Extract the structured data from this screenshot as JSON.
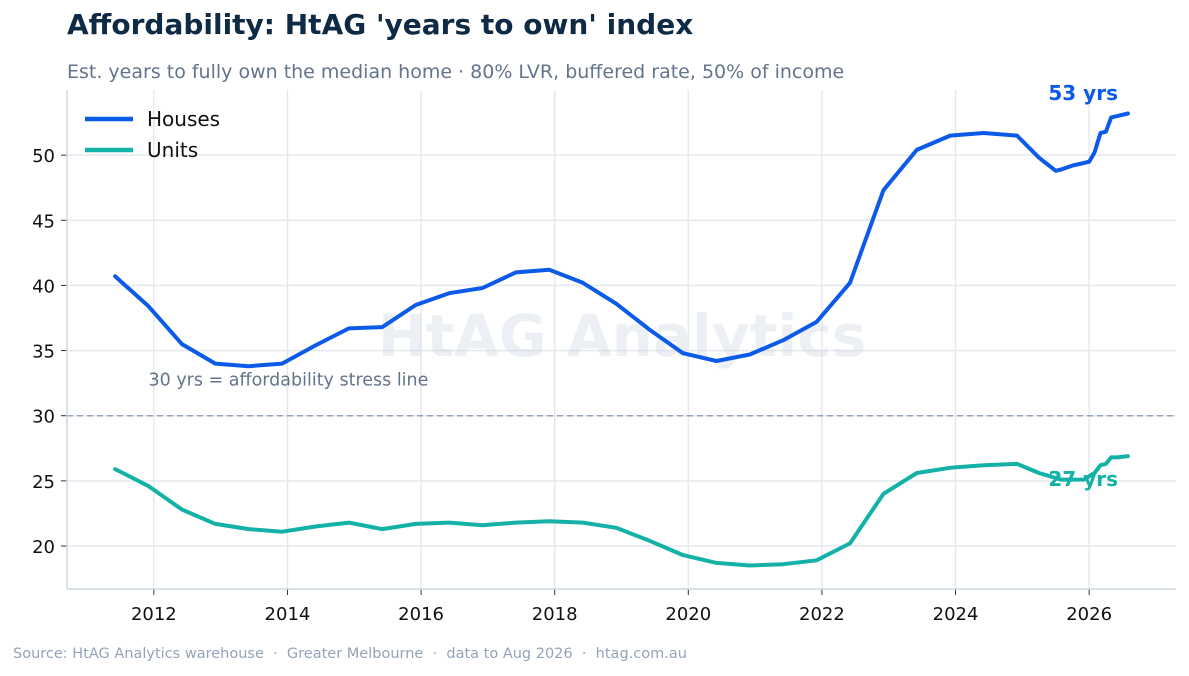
{
  "header": {
    "title": "Affordability: HtAG 'years to own' index",
    "subtitle": "Est. years to fully own the median home · 80% LVR, buffered rate, 50% of income"
  },
  "footer": {
    "source": "Source: HtAG Analytics warehouse  ·  Greater Melbourne  ·  data to Aug 2026  ·  htag.com.au"
  },
  "watermark": "HtAG Analytics",
  "colors": {
    "houses": "#0b5be8",
    "units": "#14b1a6",
    "grid": "#e5e9ee",
    "axis": "#cbd5e1",
    "stress_line": "#94a3b8"
  },
  "chart_data": {
    "type": "line",
    "xlim": [
      2010.7,
      2027.3
    ],
    "ylim": [
      16.7,
      55
    ],
    "x_ticks": [
      2012,
      2014,
      2016,
      2018,
      2020,
      2022,
      2024,
      2026
    ],
    "y_ticks": [
      20,
      25,
      30,
      35,
      40,
      45,
      50
    ],
    "grid": true,
    "legend_position": "top-left",
    "reference_line": {
      "y": 30,
      "label": "30 yrs = affordability stress line"
    },
    "series": [
      {
        "name": "Houses",
        "color": "#0b5be8",
        "end_label": "53 yrs",
        "x": [
          2011.42,
          2011.92,
          2012.42,
          2012.92,
          2013.42,
          2013.92,
          2014.42,
          2014.92,
          2015.42,
          2015.92,
          2016.42,
          2016.92,
          2017.42,
          2017.92,
          2018.42,
          2018.92,
          2019.42,
          2019.92,
          2020.42,
          2020.92,
          2021.42,
          2021.92,
          2022.42,
          2022.92,
          2023.42,
          2023.92,
          2024.42,
          2024.92,
          2025.25,
          2025.5,
          2025.58,
          2025.75,
          2025.92,
          2026.0,
          2026.08,
          2026.17,
          2026.25,
          2026.33,
          2026.42,
          2026.58
        ],
        "y": [
          40.7,
          38.4,
          35.5,
          34.0,
          33.8,
          34.0,
          35.4,
          36.7,
          36.8,
          38.5,
          39.4,
          39.8,
          41.0,
          41.2,
          40.2,
          38.6,
          36.6,
          34.8,
          34.2,
          34.7,
          35.8,
          37.2,
          40.2,
          47.3,
          50.4,
          51.5,
          51.7,
          51.5,
          49.8,
          48.8,
          48.9,
          49.2,
          49.4,
          49.5,
          50.2,
          51.7,
          51.8,
          52.9,
          53.0,
          53.2
        ]
      },
      {
        "name": "Units",
        "color": "#14b1a6",
        "end_label": "27 yrs",
        "x": [
          2011.42,
          2011.92,
          2012.42,
          2012.92,
          2013.42,
          2013.92,
          2014.42,
          2014.92,
          2015.42,
          2015.92,
          2016.42,
          2016.92,
          2017.42,
          2017.92,
          2018.42,
          2018.92,
          2019.42,
          2019.92,
          2020.42,
          2020.92,
          2021.42,
          2021.92,
          2022.42,
          2022.92,
          2023.42,
          2023.92,
          2024.42,
          2024.92,
          2025.25,
          2025.58,
          2025.92,
          2026.08,
          2026.17,
          2026.25,
          2026.33,
          2026.42,
          2026.58
        ],
        "y": [
          25.9,
          24.6,
          22.8,
          21.7,
          21.3,
          21.1,
          21.5,
          21.8,
          21.3,
          21.7,
          21.8,
          21.6,
          21.8,
          21.9,
          21.8,
          21.4,
          20.4,
          19.3,
          18.7,
          18.5,
          18.6,
          18.9,
          20.2,
          24.0,
          25.6,
          26.0,
          26.2,
          26.3,
          25.6,
          25.1,
          25.1,
          25.6,
          26.2,
          26.3,
          26.8,
          26.8,
          26.9
        ]
      }
    ]
  }
}
